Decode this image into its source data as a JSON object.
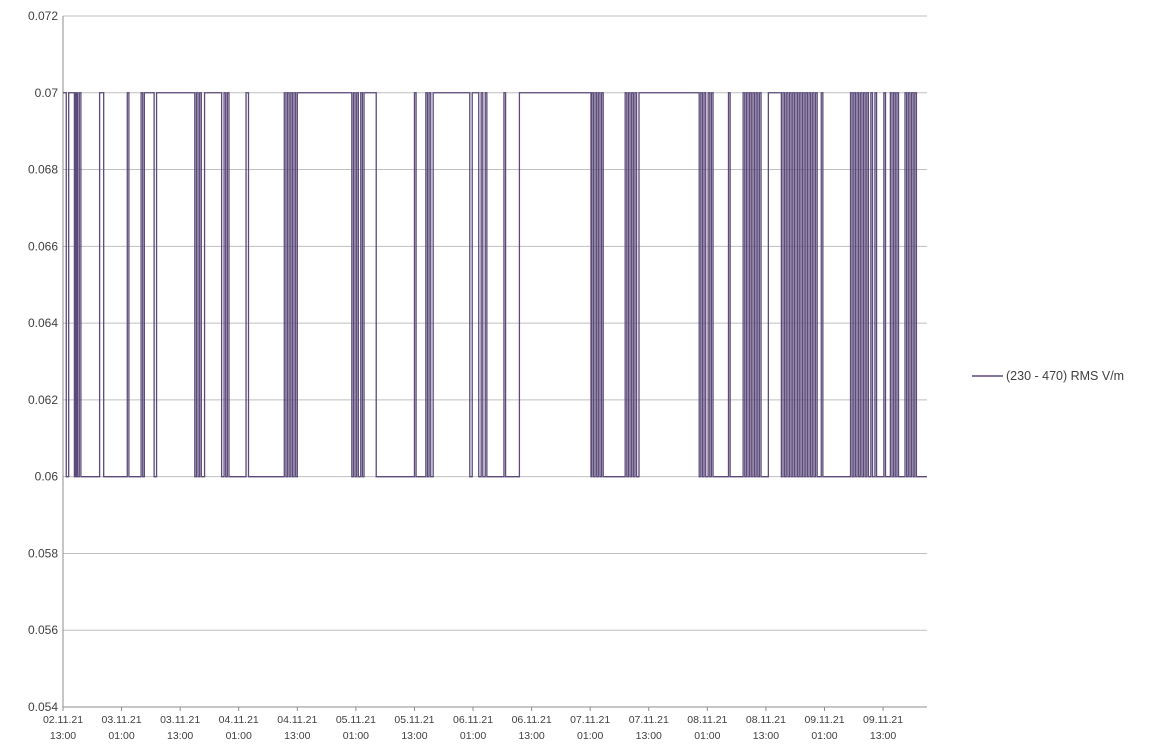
{
  "chart_data": {
    "type": "line",
    "title": "",
    "xlabel": "",
    "ylabel": "",
    "ylim": [
      0.054,
      0.072
    ],
    "y_ticks": [
      "0.054",
      "0.056",
      "0.058",
      "0.06",
      "0.062",
      "0.064",
      "0.066",
      "0.068",
      "0.07",
      "0.072"
    ],
    "x_ticks": [
      {
        "date": "02.11.21",
        "time": "13:00"
      },
      {
        "date": "03.11.21",
        "time": "01:00"
      },
      {
        "date": "03.11.21",
        "time": "13:00"
      },
      {
        "date": "04.11.21",
        "time": "01:00"
      },
      {
        "date": "04.11.21",
        "time": "13:00"
      },
      {
        "date": "05.11.21",
        "time": "01:00"
      },
      {
        "date": "05.11.21",
        "time": "13:00"
      },
      {
        "date": "06.11.21",
        "time": "01:00"
      },
      {
        "date": "06.11.21",
        "time": "13:00"
      },
      {
        "date": "07.11.21",
        "time": "01:00"
      },
      {
        "date": "07.11.21",
        "time": "13:00"
      },
      {
        "date": "08.11.21",
        "time": "01:00"
      },
      {
        "date": "08.11.21",
        "time": "13:00"
      },
      {
        "date": "09.11.21",
        "time": "01:00"
      },
      {
        "date": "09.11.21",
        "time": "13:00"
      }
    ],
    "x_start": "02.11.21 13:00",
    "x_end": "09.11.21 22:00",
    "grid": "horizontal",
    "legend_position": "right",
    "series": [
      {
        "name": "(230 - 470) RMS  V/m",
        "color": "#5b4a7a",
        "step": true,
        "points": [
          [
            "02.11.21 13:00",
            0.07
          ],
          [
            "02.11.21 13:40",
            0.06
          ],
          [
            "02.11.21 14:10",
            0.07
          ],
          [
            "02.11.21 15:20",
            0.06
          ],
          [
            "02.11.21 15:30",
            0.07
          ],
          [
            "02.11.21 15:40",
            0.06
          ],
          [
            "02.11.21 15:50",
            0.07
          ],
          [
            "02.11.21 16:00",
            0.06
          ],
          [
            "02.11.21 16:20",
            0.07
          ],
          [
            "02.11.21 16:40",
            0.06
          ],
          [
            "02.11.21 20:30",
            0.07
          ],
          [
            "02.11.21 21:20",
            0.06
          ],
          [
            "03.11.21 02:10",
            0.07
          ],
          [
            "03.11.21 02:30",
            0.06
          ],
          [
            "03.11.21 05:00",
            0.07
          ],
          [
            "03.11.21 05:20",
            0.06
          ],
          [
            "03.11.21 05:40",
            0.07
          ],
          [
            "03.11.21 07:40",
            0.06
          ],
          [
            "03.11.21 08:10",
            0.07
          ],
          [
            "03.11.21 16:00",
            0.06
          ],
          [
            "03.11.21 16:20",
            0.07
          ],
          [
            "03.11.21 16:40",
            0.06
          ],
          [
            "03.11.21 17:00",
            0.07
          ],
          [
            "03.11.21 17:20",
            0.06
          ],
          [
            "03.11.21 18:00",
            0.07
          ],
          [
            "03.11.21 21:30",
            0.06
          ],
          [
            "03.11.21 22:00",
            0.07
          ],
          [
            "03.11.21 22:20",
            0.06
          ],
          [
            "03.11.21 22:40",
            0.07
          ],
          [
            "03.11.21 23:00",
            0.06
          ],
          [
            "04.11.21 02:30",
            0.07
          ],
          [
            "04.11.21 03:00",
            0.06
          ],
          [
            "04.11.21 10:20",
            0.07
          ],
          [
            "04.11.21 10:40",
            0.06
          ],
          [
            "04.11.21 11:00",
            0.07
          ],
          [
            "04.11.21 11:20",
            0.06
          ],
          [
            "04.11.21 11:40",
            0.07
          ],
          [
            "04.11.21 12:00",
            0.06
          ],
          [
            "04.11.21 12:20",
            0.07
          ],
          [
            "04.11.21 12:40",
            0.06
          ],
          [
            "04.11.21 13:00",
            0.07
          ],
          [
            "05.11.21 00:10",
            0.06
          ],
          [
            "05.11.21 00:30",
            0.07
          ],
          [
            "05.11.21 00:50",
            0.06
          ],
          [
            "05.11.21 01:10",
            0.07
          ],
          [
            "05.11.21 01:30",
            0.06
          ],
          [
            "05.11.21 02:00",
            0.07
          ],
          [
            "05.11.21 02:20",
            0.06
          ],
          [
            "05.11.21 02:40",
            0.07
          ],
          [
            "05.11.21 05:10",
            0.06
          ],
          [
            "05.11.21 13:00",
            0.07
          ],
          [
            "05.11.21 13:20",
            0.06
          ],
          [
            "05.11.21 15:20",
            0.07
          ],
          [
            "05.11.21 15:40",
            0.06
          ],
          [
            "05.11.21 16:00",
            0.07
          ],
          [
            "05.11.21 16:20",
            0.06
          ],
          [
            "05.11.21 16:50",
            0.07
          ],
          [
            "06.11.21 00:20",
            0.06
          ],
          [
            "06.11.21 00:50",
            0.07
          ],
          [
            "06.11.21 02:10",
            0.06
          ],
          [
            "06.11.21 02:40",
            0.07
          ],
          [
            "06.11.21 03:00",
            0.06
          ],
          [
            "06.11.21 03:30",
            0.07
          ],
          [
            "06.11.21 03:50",
            0.06
          ],
          [
            "06.11.21 07:20",
            0.07
          ],
          [
            "06.11.21 07:40",
            0.06
          ],
          [
            "06.11.21 10:30",
            0.07
          ],
          [
            "07.11.21 01:10",
            0.06
          ],
          [
            "07.11.21 01:20",
            0.07
          ],
          [
            "07.11.21 01:40",
            0.06
          ],
          [
            "07.11.21 02:00",
            0.07
          ],
          [
            "07.11.21 02:20",
            0.06
          ],
          [
            "07.11.21 02:40",
            0.07
          ],
          [
            "07.11.21 03:00",
            0.06
          ],
          [
            "07.11.21 03:20",
            0.07
          ],
          [
            "07.11.21 03:40",
            0.06
          ],
          [
            "07.11.21 08:10",
            0.07
          ],
          [
            "07.11.21 08:30",
            0.06
          ],
          [
            "07.11.21 08:50",
            0.07
          ],
          [
            "07.11.21 09:10",
            0.06
          ],
          [
            "07.11.21 09:30",
            0.07
          ],
          [
            "07.11.21 09:50",
            0.06
          ],
          [
            "07.11.21 10:10",
            0.07
          ],
          [
            "07.11.21 10:30",
            0.06
          ],
          [
            "07.11.21 11:00",
            0.07
          ],
          [
            "07.11.21 23:20",
            0.06
          ],
          [
            "07.11.21 23:40",
            0.07
          ],
          [
            "08.11.21 00:00",
            0.06
          ],
          [
            "08.11.21 00:20",
            0.07
          ],
          [
            "08.11.21 00:40",
            0.06
          ],
          [
            "08.11.21 01:10",
            0.07
          ],
          [
            "08.11.21 01:30",
            0.06
          ],
          [
            "08.11.21 01:50",
            0.07
          ],
          [
            "08.11.21 02:10",
            0.06
          ],
          [
            "08.11.21 05:20",
            0.07
          ],
          [
            "08.11.21 05:40",
            0.06
          ],
          [
            "08.11.21 08:20",
            0.07
          ],
          [
            "08.11.21 08:40",
            0.06
          ],
          [
            "08.11.21 09:00",
            0.07
          ],
          [
            "08.11.21 09:20",
            0.06
          ],
          [
            "08.11.21 09:40",
            0.07
          ],
          [
            "08.11.21 10:00",
            0.06
          ],
          [
            "08.11.21 10:20",
            0.07
          ],
          [
            "08.11.21 10:40",
            0.06
          ],
          [
            "08.11.21 11:00",
            0.07
          ],
          [
            "08.11.21 11:20",
            0.06
          ],
          [
            "08.11.21 11:40",
            0.07
          ],
          [
            "08.11.21 12:00",
            0.06
          ],
          [
            "08.11.21 13:30",
            0.07
          ],
          [
            "08.11.21 16:10",
            0.06
          ],
          [
            "08.11.21 16:30",
            0.07
          ],
          [
            "08.11.21 16:50",
            0.06
          ],
          [
            "08.11.21 17:10",
            0.07
          ],
          [
            "08.11.21 17:30",
            0.06
          ],
          [
            "08.11.21 17:50",
            0.07
          ],
          [
            "08.11.21 18:10",
            0.06
          ],
          [
            "08.11.21 18:30",
            0.07
          ],
          [
            "08.11.21 18:50",
            0.06
          ],
          [
            "08.11.21 19:10",
            0.07
          ],
          [
            "08.11.21 19:30",
            0.06
          ],
          [
            "08.11.21 19:50",
            0.07
          ],
          [
            "08.11.21 20:10",
            0.06
          ],
          [
            "08.11.21 20:30",
            0.07
          ],
          [
            "08.11.21 20:50",
            0.06
          ],
          [
            "08.11.21 21:10",
            0.07
          ],
          [
            "08.11.21 21:30",
            0.06
          ],
          [
            "08.11.21 21:50",
            0.07
          ],
          [
            "08.11.21 22:10",
            0.06
          ],
          [
            "08.11.21 22:30",
            0.07
          ],
          [
            "08.11.21 22:50",
            0.06
          ],
          [
            "08.11.21 23:10",
            0.07
          ],
          [
            "08.11.21 23:30",
            0.06
          ],
          [
            "09.11.21 00:20",
            0.07
          ],
          [
            "09.11.21 00:40",
            0.06
          ],
          [
            "09.11.21 06:20",
            0.07
          ],
          [
            "09.11.21 06:40",
            0.06
          ],
          [
            "09.11.21 07:00",
            0.07
          ],
          [
            "09.11.21 07:20",
            0.06
          ],
          [
            "09.11.21 07:40",
            0.07
          ],
          [
            "09.11.21 08:00",
            0.06
          ],
          [
            "09.11.21 08:20",
            0.07
          ],
          [
            "09.11.21 08:40",
            0.06
          ],
          [
            "09.11.21 09:00",
            0.07
          ],
          [
            "09.11.21 09:20",
            0.06
          ],
          [
            "09.11.21 09:40",
            0.07
          ],
          [
            "09.11.21 10:00",
            0.06
          ],
          [
            "09.11.21 10:30",
            0.07
          ],
          [
            "09.11.21 10:50",
            0.06
          ],
          [
            "09.11.21 11:20",
            0.07
          ],
          [
            "09.11.21 11:40",
            0.06
          ],
          [
            "09.11.21 13:10",
            0.07
          ],
          [
            "09.11.21 13:30",
            0.06
          ],
          [
            "09.11.21 14:30",
            0.07
          ],
          [
            "09.11.21 14:50",
            0.06
          ],
          [
            "09.11.21 15:10",
            0.07
          ],
          [
            "09.11.21 15:30",
            0.06
          ],
          [
            "09.11.21 15:50",
            0.07
          ],
          [
            "09.11.21 16:10",
            0.06
          ],
          [
            "09.11.21 17:30",
            0.07
          ],
          [
            "09.11.21 17:50",
            0.06
          ],
          [
            "09.11.21 18:10",
            0.07
          ],
          [
            "09.11.21 18:30",
            0.06
          ],
          [
            "09.11.21 18:50",
            0.07
          ],
          [
            "09.11.21 19:10",
            0.06
          ],
          [
            "09.11.21 19:30",
            0.07
          ],
          [
            "09.11.21 19:50",
            0.06
          ],
          [
            "09.11.21 22:00",
            0.06
          ]
        ]
      }
    ]
  }
}
